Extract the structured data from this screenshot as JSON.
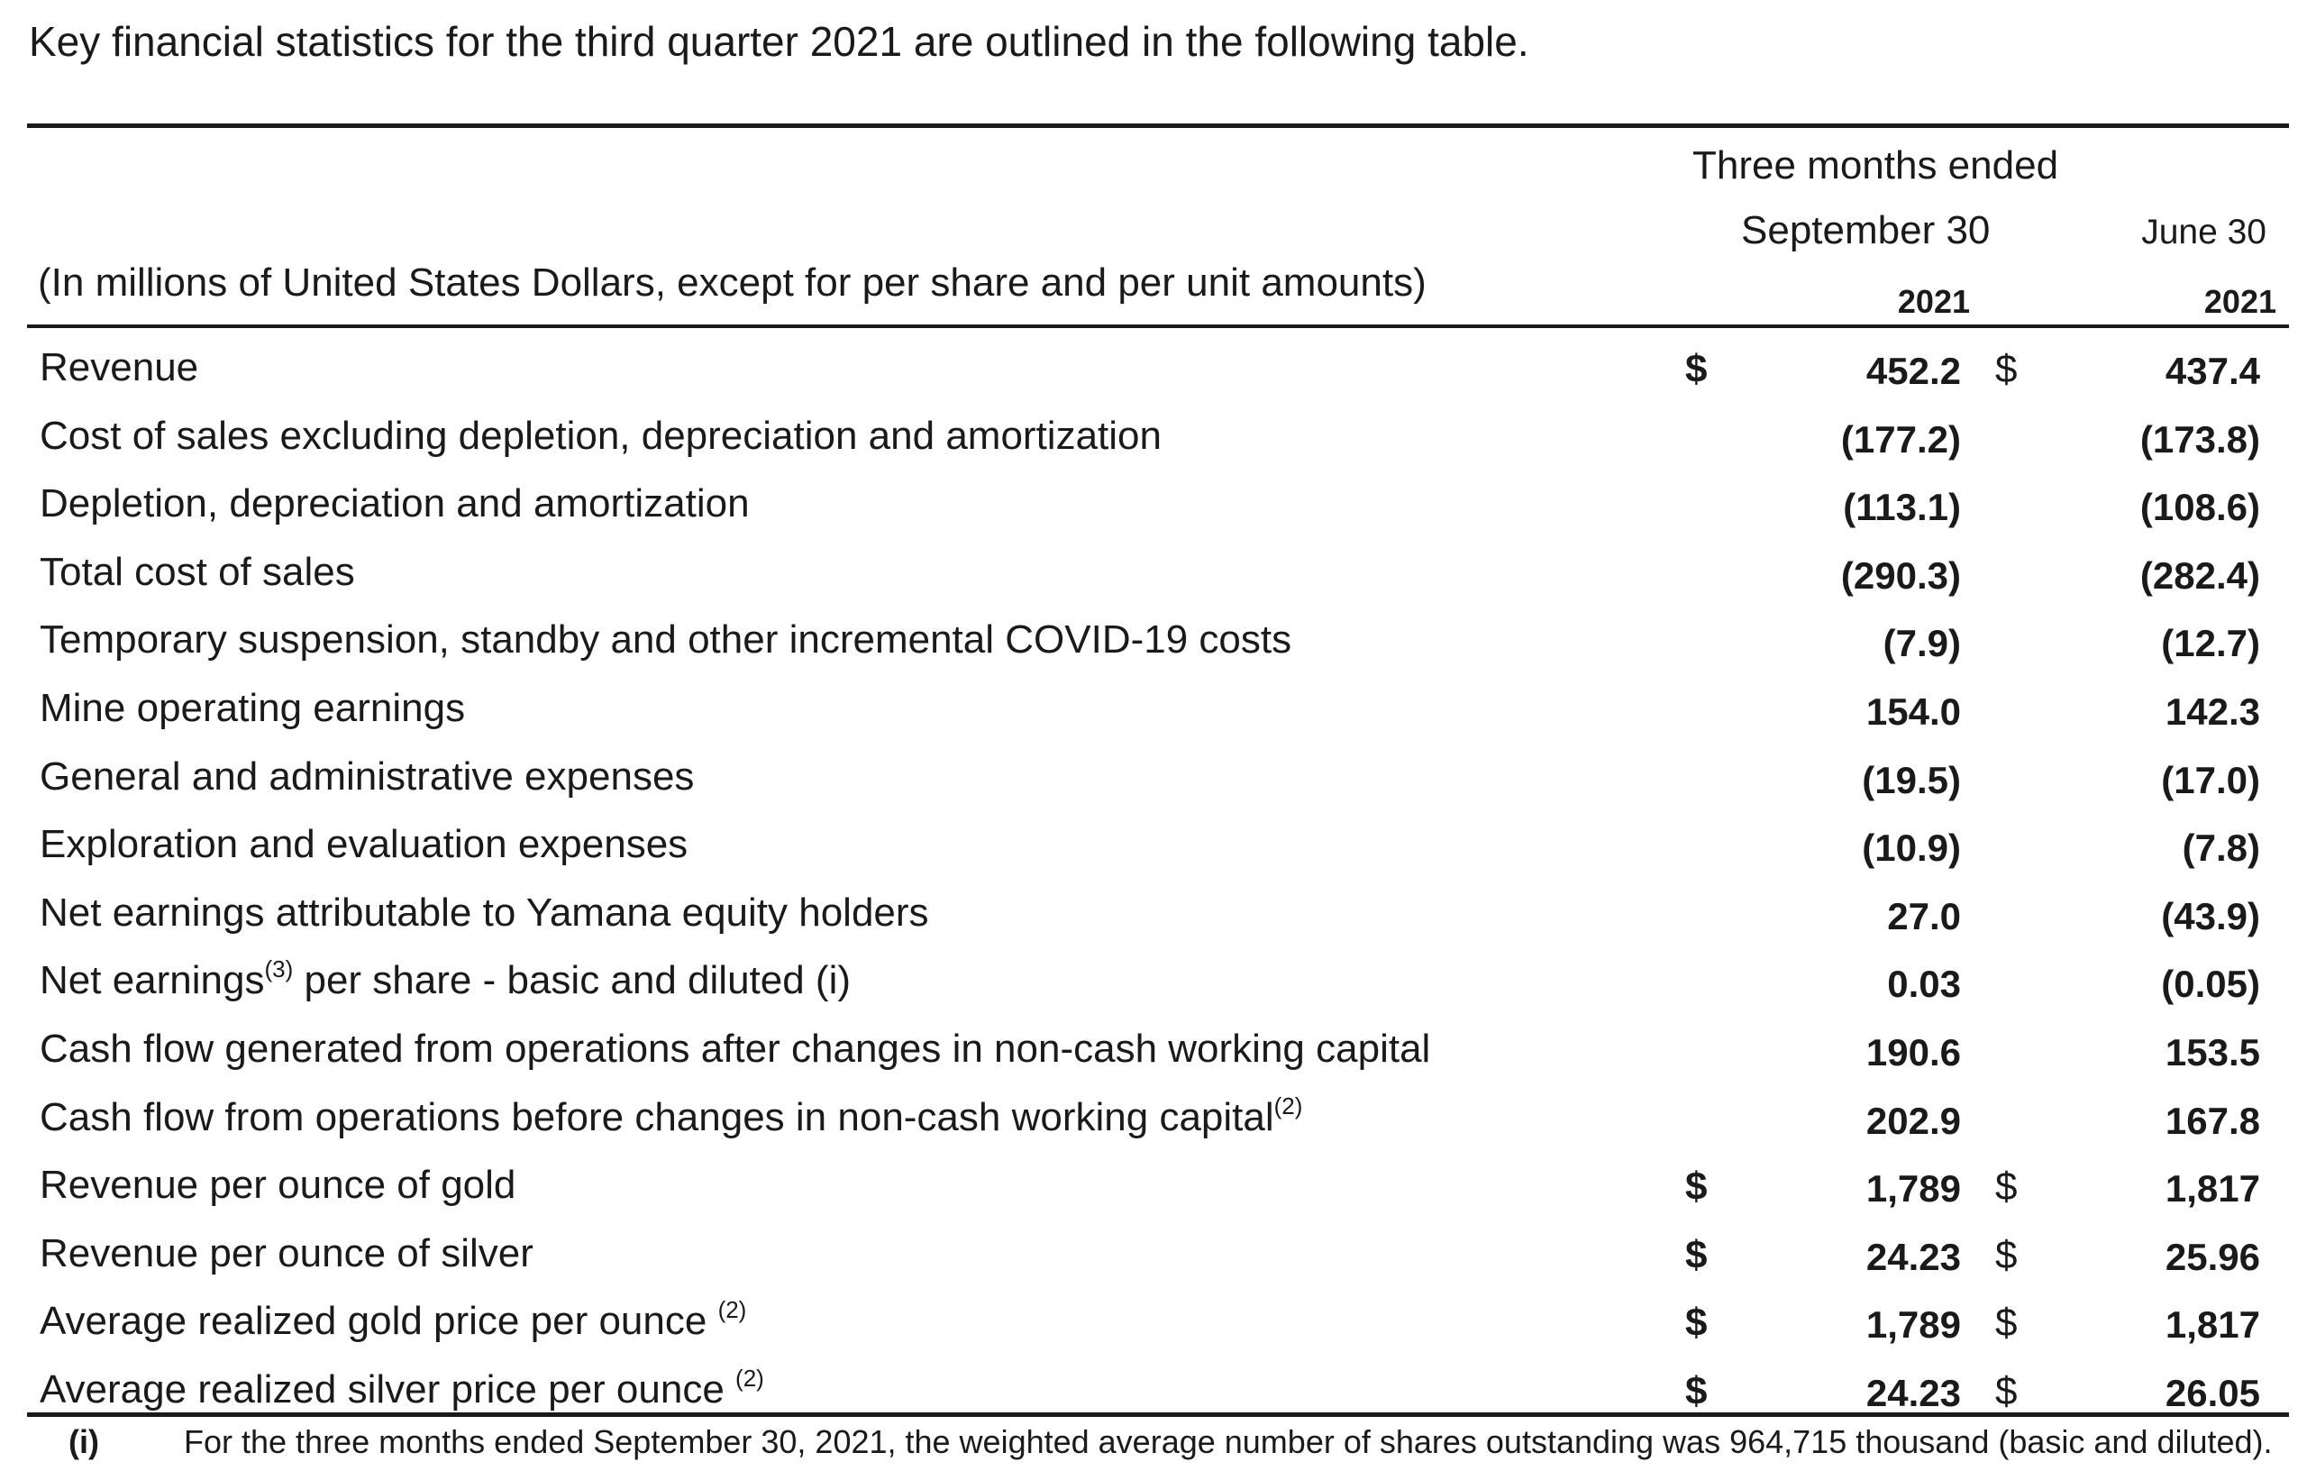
{
  "intro": "Key financial statistics for the third quarter 2021 are outlined in the following table.",
  "header": {
    "period_group": "Three months ended",
    "col1_period": "September  30",
    "col2_period": "June 30",
    "units_note": "(In millions of United States Dollars, except for per share and per unit amounts)",
    "col1_year": "2021",
    "col2_year": "2021"
  },
  "rows": [
    {
      "label": "Revenue",
      "sup": "",
      "cur1": "$",
      "v1": "452.2",
      "cur2": "$",
      "v2": "437.4"
    },
    {
      "label": "Cost of sales excluding depletion, depreciation and amortization",
      "sup": "",
      "cur1": "",
      "v1": "(177.2)",
      "cur2": "",
      "v2": "(173.8)"
    },
    {
      "label": "Depletion, depreciation and amortization",
      "sup": "",
      "cur1": "",
      "v1": "(113.1)",
      "cur2": "",
      "v2": "(108.6)"
    },
    {
      "label": "Total cost of sales",
      "sup": "",
      "cur1": "",
      "v1": "(290.3)",
      "cur2": "",
      "v2": "(282.4)"
    },
    {
      "label": "Temporary suspension, standby and other incremental COVID-19 costs",
      "sup": "",
      "cur1": "",
      "v1": "(7.9)",
      "cur2": "",
      "v2": "(12.7)"
    },
    {
      "label": "Mine operating earnings",
      "sup": "",
      "cur1": "",
      "v1": "154.0",
      "cur2": "",
      "v2": "142.3"
    },
    {
      "label": "General and administrative expenses",
      "sup": "",
      "cur1": "",
      "v1": "(19.5)",
      "cur2": "",
      "v2": "(17.0)"
    },
    {
      "label": "Exploration and evaluation expenses",
      "sup": "",
      "cur1": "",
      "v1": "(10.9)",
      "cur2": "",
      "v2": "(7.8)"
    },
    {
      "label": "Net earnings attributable to Yamana equity holders",
      "sup": "",
      "cur1": "",
      "v1": "27.0",
      "cur2": "",
      "v2": "(43.9)"
    },
    {
      "label": "Net earnings",
      "sup": "(3)",
      "label_after": " per share - basic and diluted (i)",
      "cur1": "",
      "v1": "0.03",
      "cur2": "",
      "v2": "(0.05)"
    },
    {
      "label": "Cash flow generated from operations after changes in non-cash working capital",
      "sup": "",
      "cur1": "",
      "v1": "190.6",
      "cur2": "",
      "v2": "153.5"
    },
    {
      "label": "Cash flow from operations before changes in non-cash working capital",
      "sup": "(2)",
      "cur1": "",
      "v1": "202.9",
      "cur2": "",
      "v2": "167.8"
    },
    {
      "label": "Revenue per ounce of gold",
      "sup": "",
      "cur1": "$",
      "v1": "1,789",
      "cur2": "$",
      "v2": "1,817"
    },
    {
      "label": "Revenue per ounce of silver",
      "sup": "",
      "cur1": "$",
      "v1": "24.23",
      "cur2": "$",
      "v2": "25.96"
    },
    {
      "label": "Average realized gold price per ounce ",
      "sup": "(2)",
      "cur1": "$",
      "v1": "1,789",
      "cur2": "$",
      "v2": "1,817"
    },
    {
      "label": "Average realized silver price per ounce ",
      "sup": "(2)",
      "cur1": "$",
      "v1": "24.23",
      "cur2": "$",
      "v2": "26.05"
    }
  ],
  "footnote": {
    "marker": "(i)",
    "text": "For the three months ended September 30, 2021, the weighted average number of shares outstanding was 964,715 thousand (basic and diluted)."
  }
}
